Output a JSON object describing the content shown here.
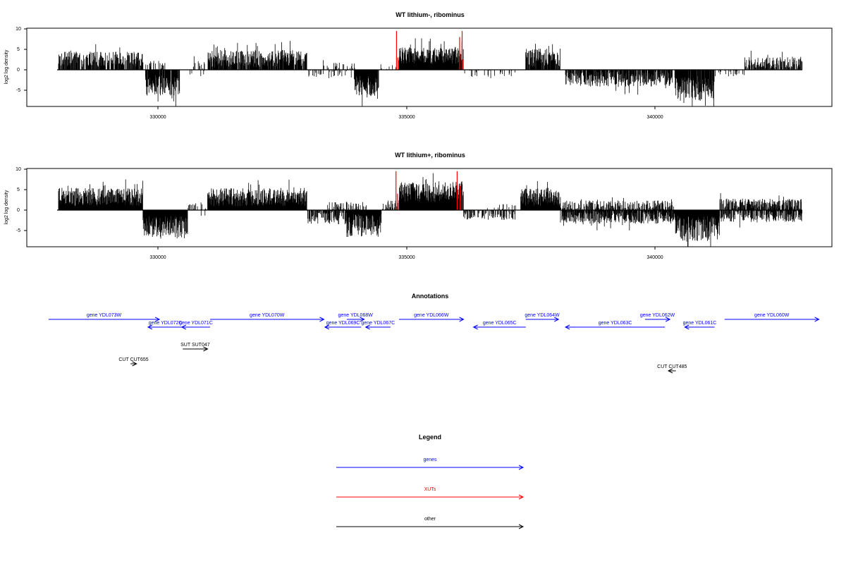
{
  "chart_data": [
    {
      "type": "bar",
      "title": "WT lithium-, ribominus",
      "ylabel": "log2 log density",
      "xlabel": "",
      "xlim": [
        327800,
        343300
      ],
      "ylim": [
        -9,
        10
      ],
      "x_ticks": [
        330000,
        335000,
        340000
      ],
      "x_tick_labels": [
        "330000",
        "335000",
        "340000"
      ],
      "y_ticks": [
        10,
        5,
        0,
        -5
      ],
      "y_tick_labels": [
        "10",
        "5",
        "0",
        "-5"
      ],
      "grid": false,
      "colors": {
        "reads": "#000000",
        "xut_peaks": "#ff0000"
      },
      "segments": [
        {
          "start": 328000,
          "end": 329700,
          "strand": "+",
          "mean": 2.6,
          "amp": 1.3,
          "density": 0.75
        },
        {
          "start": 329700,
          "end": 330150,
          "strand": "+",
          "mean": 1.2,
          "amp": 0.8,
          "density": 0.25
        },
        {
          "start": 329750,
          "end": 330450,
          "strand": "-",
          "mean": -3.8,
          "amp": 1.8,
          "density": 0.95
        },
        {
          "start": 330450,
          "end": 331000,
          "strand": "-",
          "mean": -0.8,
          "amp": 0.6,
          "density": 0.1
        },
        {
          "start": 330700,
          "end": 331400,
          "strand": "+",
          "mean": 1.2,
          "amp": 0.8,
          "density": 0.2
        },
        {
          "start": 331000,
          "end": 333000,
          "strand": "+",
          "mean": 2.8,
          "amp": 1.5,
          "density": 0.8
        },
        {
          "start": 333000,
          "end": 333900,
          "strand": "-",
          "mean": -0.9,
          "amp": 0.7,
          "density": 0.25
        },
        {
          "start": 333300,
          "end": 334000,
          "strand": "+",
          "mean": 0.9,
          "amp": 0.6,
          "density": 0.15
        },
        {
          "start": 333950,
          "end": 334450,
          "strand": "-",
          "mean": -4.0,
          "amp": 1.8,
          "density": 0.95
        },
        {
          "start": 334450,
          "end": 334850,
          "strand": "+",
          "mean": 0.8,
          "amp": 0.6,
          "density": 0.15
        },
        {
          "start": 334850,
          "end": 336150,
          "strand": "+",
          "mean": 3.5,
          "amp": 1.5,
          "density": 1.0
        },
        {
          "start": 336150,
          "end": 337200,
          "strand": "-",
          "mean": -0.9,
          "amp": 0.7,
          "density": 0.2
        },
        {
          "start": 337400,
          "end": 338100,
          "strand": "+",
          "mean": 3.0,
          "amp": 1.6,
          "density": 0.85
        },
        {
          "start": 338200,
          "end": 340350,
          "strand": "-",
          "mean": -2.3,
          "amp": 1.3,
          "density": 0.75
        },
        {
          "start": 340400,
          "end": 341200,
          "strand": "-",
          "mean": -4.5,
          "amp": 2.2,
          "density": 0.95
        },
        {
          "start": 341200,
          "end": 341800,
          "strand": "-",
          "mean": -0.8,
          "amp": 0.6,
          "density": 0.2
        },
        {
          "start": 341800,
          "end": 343000,
          "strand": "+",
          "mean": 1.8,
          "amp": 1.0,
          "density": 0.6
        }
      ],
      "xut_peaks": [
        {
          "x": 334800,
          "value": 9.5
        },
        {
          "x": 334830,
          "value": 3.0
        },
        {
          "x": 336070,
          "value": 8.0
        },
        {
          "x": 336120,
          "value": 9.5
        },
        {
          "x": 336140,
          "value": 2.5
        }
      ]
    },
    {
      "type": "bar",
      "title": "WT lithium+, ribominus",
      "ylabel": "log2 log density",
      "xlabel": "",
      "xlim": [
        327800,
        343300
      ],
      "ylim": [
        -9,
        10
      ],
      "x_ticks": [
        330000,
        335000,
        340000
      ],
      "x_tick_labels": [
        "330000",
        "335000",
        "340000"
      ],
      "y_ticks": [
        10,
        5,
        0,
        -5
      ],
      "y_tick_labels": [
        "10",
        "5",
        "0",
        "-5"
      ],
      "grid": false,
      "colors": {
        "reads": "#000000",
        "xut_peaks": "#ff0000"
      },
      "segments": [
        {
          "start": 328000,
          "end": 329700,
          "strand": "+",
          "mean": 3.2,
          "amp": 1.6,
          "density": 1.0
        },
        {
          "start": 329700,
          "end": 330600,
          "strand": "-",
          "mean": -4.2,
          "amp": 2.0,
          "density": 1.0
        },
        {
          "start": 330600,
          "end": 331000,
          "strand": "+",
          "mean": 0.9,
          "amp": 0.7,
          "density": 0.3
        },
        {
          "start": 330800,
          "end": 331000,
          "strand": "-",
          "mean": -0.8,
          "amp": 0.6,
          "density": 0.2
        },
        {
          "start": 331000,
          "end": 333000,
          "strand": "+",
          "mean": 3.2,
          "amp": 1.6,
          "density": 1.0
        },
        {
          "start": 333000,
          "end": 333800,
          "strand": "-",
          "mean": -1.8,
          "amp": 1.2,
          "density": 0.7
        },
        {
          "start": 333400,
          "end": 334200,
          "strand": "+",
          "mean": 1.0,
          "amp": 0.8,
          "density": 0.3
        },
        {
          "start": 333800,
          "end": 334500,
          "strand": "-",
          "mean": -3.8,
          "amp": 2.0,
          "density": 1.0
        },
        {
          "start": 334500,
          "end": 334850,
          "strand": "+",
          "mean": 1.2,
          "amp": 0.8,
          "density": 0.4
        },
        {
          "start": 334850,
          "end": 336150,
          "strand": "+",
          "mean": 4.5,
          "amp": 1.8,
          "density": 1.0
        },
        {
          "start": 336150,
          "end": 337200,
          "strand": "-",
          "mean": -1.2,
          "amp": 0.9,
          "density": 0.55
        },
        {
          "start": 336600,
          "end": 337200,
          "strand": "+",
          "mean": 0.8,
          "amp": 0.5,
          "density": 0.2
        },
        {
          "start": 337300,
          "end": 338100,
          "strand": "+",
          "mean": 3.2,
          "amp": 1.6,
          "density": 1.0
        },
        {
          "start": 338100,
          "end": 340400,
          "strand": "-",
          "mean": -1.8,
          "amp": 1.1,
          "density": 0.85
        },
        {
          "start": 338100,
          "end": 340400,
          "strand": "+",
          "mean": 1.3,
          "amp": 0.8,
          "density": 0.55
        },
        {
          "start": 340400,
          "end": 341300,
          "strand": "-",
          "mean": -4.5,
          "amp": 2.2,
          "density": 1.0
        },
        {
          "start": 341300,
          "end": 343000,
          "strand": "-",
          "mean": -1.5,
          "amp": 1.0,
          "density": 0.75
        },
        {
          "start": 341300,
          "end": 343000,
          "strand": "+",
          "mean": 1.6,
          "amp": 0.9,
          "density": 0.7
        }
      ],
      "xut_peaks": [
        {
          "x": 334790,
          "value": 9.5
        },
        {
          "x": 334820,
          "value": 4.0
        },
        {
          "x": 336020,
          "value": 9.5
        },
        {
          "x": 336080,
          "value": 6.0
        },
        {
          "x": 336120,
          "value": 5.0
        }
      ]
    }
  ],
  "annotations": {
    "title": "Annotations",
    "genes": [
      {
        "label": "gene YDL073W",
        "strand": "+",
        "start": 327800,
        "end": 330030,
        "row": 0
      },
      {
        "label": "gene YDL072C",
        "strand": "-",
        "start": 329800,
        "end": 330500,
        "row": 1
      },
      {
        "label": "gene YDL071C",
        "strand": "-",
        "start": 330480,
        "end": 331050,
        "row": 1
      },
      {
        "label": "gene YDL070W",
        "strand": "+",
        "start": 331050,
        "end": 333340,
        "row": 0
      },
      {
        "label": "gene YDL069C",
        "strand": "-",
        "start": 333360,
        "end": 334090,
        "row": 1
      },
      {
        "label": "gene YDL068W",
        "strand": "+",
        "start": 333800,
        "end": 334150,
        "row": 0
      },
      {
        "label": "gene YDL067C",
        "strand": "-",
        "start": 334180,
        "end": 334680,
        "row": 1
      },
      {
        "label": "gene YDL066W",
        "strand": "+",
        "start": 334850,
        "end": 336150,
        "row": 0
      },
      {
        "label": "gene YDL065C",
        "strand": "-",
        "start": 336350,
        "end": 337400,
        "row": 1
      },
      {
        "label": "gene YDL064W",
        "strand": "+",
        "start": 337400,
        "end": 338060,
        "row": 0
      },
      {
        "label": "gene YDL063C",
        "strand": "-",
        "start": 338200,
        "end": 340200,
        "row": 1
      },
      {
        "label": "gene YDL062W",
        "strand": "+",
        "start": 339800,
        "end": 340300,
        "row": 0
      },
      {
        "label": "gene YDL061C",
        "strand": "-",
        "start": 340600,
        "end": 341200,
        "row": 1
      },
      {
        "label": "gene YDL060W",
        "strand": "+",
        "start": 341400,
        "end": 343300,
        "row": 0
      }
    ],
    "others": [
      {
        "label": "SUT SUT047",
        "strand": "+",
        "start": 330500,
        "end": 331000,
        "row": 3
      },
      {
        "label": "CUT CUT655",
        "strand": "+",
        "start": 329450,
        "end": 329570,
        "row": 4
      },
      {
        "label": "CUT CUT485",
        "strand": "-",
        "start": 340270,
        "end": 340420,
        "row": 5
      }
    ]
  },
  "legend": {
    "title": "Legend",
    "items": [
      {
        "label": "genes",
        "color": "#0000ff"
      },
      {
        "label": "XUTs",
        "color": "#ff0000"
      },
      {
        "label": "other",
        "color": "#000000"
      }
    ]
  },
  "colors": {
    "gene": "#0000ff",
    "xut": "#ff0000",
    "other": "#000000",
    "axis": "#000000"
  }
}
